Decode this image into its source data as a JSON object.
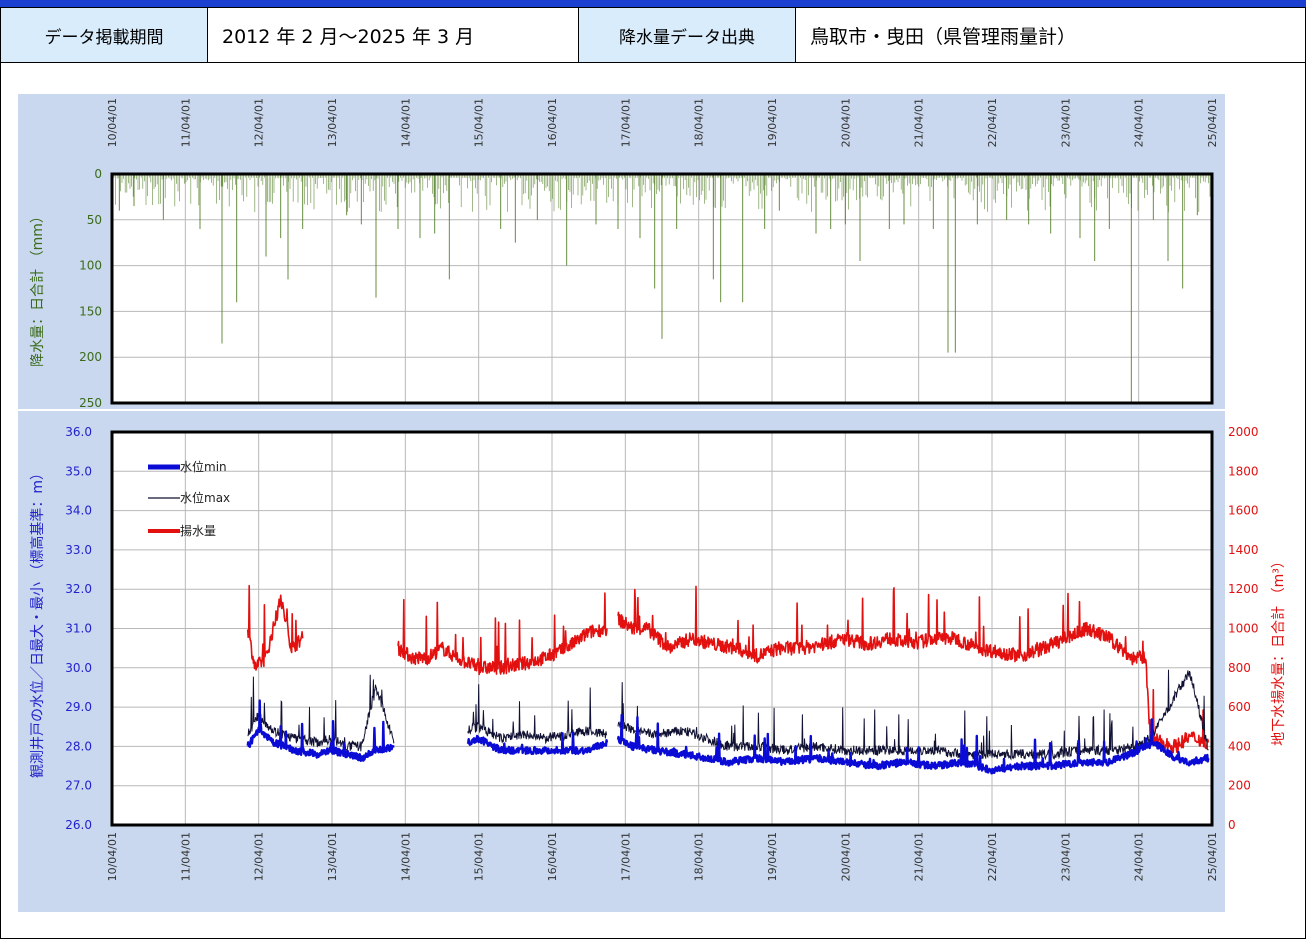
{
  "header": {
    "period_label": "データ掲載期間",
    "period_value": "2012 年 2 月～2025 年 3 月",
    "source_label": "降水量データ出典",
    "source_value": "鳥取市・曳田（県管理雨量計）"
  },
  "colors": {
    "panel_bg": "#c9d8ee",
    "rain": "#4d7a1f",
    "level_min": "#0b0bd6",
    "level_max": "#111133",
    "pump": "#e31010",
    "left_axis_text": "#2222cc",
    "right_axis_text": "#e31010",
    "rain_axis_text": "#3b6b1a"
  },
  "chart_data": [
    {
      "type": "bar",
      "ylabel": "降水量：日合計 （mm）",
      "y_inverted": true,
      "ylim": [
        0,
        250
      ],
      "yticks": [
        "0",
        "50",
        "100",
        "150",
        "200",
        "250"
      ],
      "xlim": [
        2010.0,
        2025.0
      ],
      "xticks": [
        "10/04/01",
        "11/04/01",
        "12/04/01",
        "13/04/01",
        "14/04/01",
        "15/04/01",
        "16/04/01",
        "17/04/01",
        "18/04/01",
        "19/04/01",
        "20/04/01",
        "21/04/01",
        "22/04/01",
        "23/04/01",
        "24/04/01",
        "25/04/01"
      ],
      "series": [
        {
          "values_note": "daily rainfall sampled (peak events)",
          "x": [
            2010.1,
            2010.3,
            2010.7,
            2011.2,
            2011.5,
            2011.7,
            2012.1,
            2012.3,
            2012.4,
            2012.6,
            2013.2,
            2013.4,
            2013.6,
            2013.9,
            2014.2,
            2014.4,
            2014.6,
            2015.3,
            2015.5,
            2015.8,
            2016.2,
            2016.6,
            2016.9,
            2017.2,
            2017.4,
            2017.5,
            2017.7,
            2018.2,
            2018.3,
            2018.6,
            2018.9,
            2019.1,
            2019.6,
            2019.8,
            2020.0,
            2020.2,
            2020.6,
            2020.8,
            2021.2,
            2021.4,
            2021.5,
            2021.8,
            2022.2,
            2022.5,
            2022.8,
            2023.2,
            2023.4,
            2023.6,
            2023.9,
            2024.2,
            2024.4,
            2024.6,
            2024.8
          ],
          "y": [
            40,
            35,
            50,
            60,
            185,
            140,
            90,
            70,
            115,
            60,
            45,
            55,
            135,
            60,
            70,
            65,
            115,
            60,
            75,
            50,
            100,
            55,
            60,
            70,
            125,
            180,
            60,
            115,
            140,
            140,
            60,
            40,
            65,
            60,
            55,
            95,
            60,
            55,
            60,
            195,
            195,
            55,
            50,
            55,
            65,
            70,
            95,
            60,
            250,
            50,
            95,
            125,
            45
          ]
        }
      ]
    },
    {
      "type": "line",
      "ylabel": "観測井戸の水位／日最大・最小 （標高基準：m）",
      "y2label": "地下水揚水量：日合計 （m³）",
      "ylim": [
        26.0,
        36.0
      ],
      "yticks": [
        "26.0",
        "27.0",
        "28.0",
        "29.0",
        "30.0",
        "31.0",
        "32.0",
        "33.0",
        "34.0",
        "35.0",
        "36.0"
      ],
      "y2lim": [
        0,
        2000
      ],
      "y2ticks": [
        "0",
        "200",
        "400",
        "600",
        "800",
        "1000",
        "1200",
        "1400",
        "1600",
        "1800",
        "2000"
      ],
      "xlim": [
        2010.0,
        2025.0
      ],
      "xticks": [
        "10/04/01",
        "11/04/01",
        "12/04/01",
        "13/04/01",
        "14/04/01",
        "15/04/01",
        "16/04/01",
        "17/04/01",
        "18/04/01",
        "19/04/01",
        "20/04/01",
        "21/04/01",
        "22/04/01",
        "23/04/01",
        "24/04/01",
        "25/04/01"
      ],
      "legend": [
        "水位min",
        "水位max",
        "揚水量"
      ],
      "series": [
        {
          "name": "水位min",
          "segments": [
            {
              "x": [
                2011.85,
                2012.0,
                2012.2,
                2012.5,
                2012.8,
                2013.0,
                2013.2,
                2013.4,
                2013.6,
                2013.85
              ],
              "y": [
                28.0,
                28.4,
                28.1,
                27.9,
                27.8,
                27.9,
                27.8,
                27.7,
                27.9,
                28.0
              ]
            },
            {
              "x": [
                2014.85,
                2015.0,
                2015.3,
                2015.6,
                2015.9,
                2016.2,
                2016.5,
                2016.75
              ],
              "y": [
                28.1,
                28.2,
                27.9,
                27.9,
                27.9,
                27.9,
                27.9,
                28.1
              ]
            },
            {
              "x": [
                2016.9,
                2017.1,
                2017.4,
                2017.8,
                2018.1,
                2018.4,
                2018.8,
                2019.2,
                2019.6,
                2020.0,
                2020.4,
                2020.8,
                2021.2,
                2021.6,
                2022.0,
                2022.4,
                2022.8,
                2023.2,
                2023.6,
                2024.0,
                2024.2,
                2024.5,
                2024.7,
                2024.95
              ],
              "y": [
                28.2,
                28.0,
                27.9,
                27.8,
                27.7,
                27.6,
                27.7,
                27.6,
                27.7,
                27.6,
                27.5,
                27.6,
                27.5,
                27.6,
                27.4,
                27.5,
                27.5,
                27.6,
                27.6,
                27.9,
                28.1,
                27.7,
                27.6,
                27.7
              ]
            }
          ]
        },
        {
          "name": "水位max",
          "segments": [
            {
              "x": [
                2011.85,
                2012.0,
                2012.2,
                2012.5,
                2012.8,
                2013.0,
                2013.2,
                2013.4,
                2013.6,
                2013.85
              ],
              "y": [
                28.3,
                28.8,
                28.4,
                28.2,
                28.1,
                28.2,
                28.0,
                28.0,
                29.5,
                28.1
              ]
            },
            {
              "x": [
                2014.85,
                2015.0,
                2015.3,
                2015.6,
                2015.9,
                2016.2,
                2016.5,
                2016.75
              ],
              "y": [
                28.4,
                28.5,
                28.2,
                28.3,
                28.2,
                28.3,
                28.4,
                28.3
              ]
            },
            {
              "x": [
                2016.9,
                2017.1,
                2017.4,
                2017.8,
                2018.1,
                2018.4,
                2018.8,
                2019.2,
                2019.6,
                2020.0,
                2020.4,
                2020.8,
                2021.2,
                2021.6,
                2022.0,
                2022.4,
                2022.8,
                2023.2,
                2023.6,
                2024.0,
                2024.2,
                2024.5,
                2024.7,
                2024.95
              ],
              "y": [
                28.6,
                28.4,
                28.3,
                28.4,
                28.2,
                28.0,
                28.0,
                27.9,
                28.0,
                27.9,
                27.9,
                27.9,
                27.9,
                27.8,
                27.8,
                27.8,
                27.8,
                27.9,
                27.9,
                28.0,
                28.3,
                29.3,
                29.9,
                27.9
              ]
            }
          ]
        },
        {
          "name": "揚水量",
          "axis": "right",
          "segments": [
            {
              "x": [
                2011.85,
                2011.95,
                2012.1,
                2012.3,
                2012.45,
                2012.6
              ],
              "y": [
                1000,
                800,
                850,
                1150,
                900,
                950
              ]
            },
            {
              "x": [
                2013.9,
                2014.1,
                2014.3,
                2014.5,
                2014.7,
                2015.0,
                2015.3,
                2015.6,
                2015.9,
                2016.2,
                2016.5,
                2016.75
              ],
              "y": [
                900,
                850,
                850,
                900,
                850,
                800,
                800,
                820,
                850,
                900,
                980,
                1000
              ]
            },
            {
              "x": [
                2016.9,
                2017.1,
                2017.3,
                2017.6,
                2017.9,
                2018.2,
                2018.5,
                2018.8,
                2019.1,
                2019.4,
                2019.7,
                2020.0,
                2020.3,
                2020.6,
                2020.9,
                2021.2,
                2021.5,
                2021.8,
                2022.1,
                2022.4,
                2022.7,
                2023.0,
                2023.3,
                2023.6,
                2023.9,
                2024.1,
                2024.15,
                2024.3,
                2024.5,
                2024.7,
                2024.95
              ],
              "y": [
                1050,
                1000,
                1000,
                900,
                950,
                920,
                900,
                860,
                900,
                900,
                920,
                950,
                920,
                950,
                920,
                950,
                950,
                900,
                880,
                860,
                900,
                950,
                1000,
                950,
                850,
                850,
                450,
                420,
                400,
                450,
                420
              ]
            }
          ]
        }
      ]
    }
  ]
}
